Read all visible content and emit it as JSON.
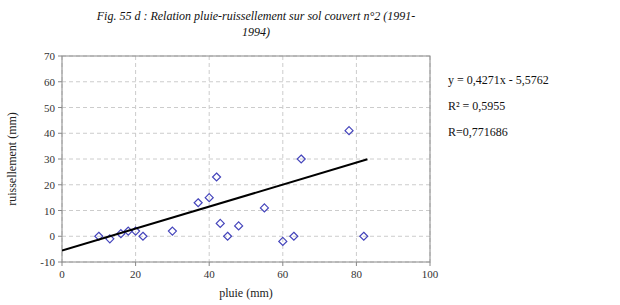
{
  "chart_data": {
    "type": "scatter",
    "title": "Fig. 55 d : Relation pluie-ruissellement sur sol couvert n°2 (1991-",
    "subtitle": "1994)",
    "x_label": "pluie (mm)",
    "y_label": "ruissellement (mm)",
    "xlim": [
      0,
      100
    ],
    "ylim": [
      -10,
      70
    ],
    "xticks": [
      0,
      20,
      40,
      60,
      80,
      100
    ],
    "yticks": [
      -10,
      0,
      10,
      20,
      30,
      40,
      50,
      60,
      70
    ],
    "grid": true,
    "series": [
      {
        "type": "scatter",
        "marker": "diamond",
        "color": "#4444bb",
        "x": [
          10,
          13,
          16,
          18,
          20,
          22,
          30,
          37,
          40,
          42,
          43,
          45,
          48,
          55,
          60,
          63,
          65,
          78,
          82
        ],
        "values": [
          0,
          -1,
          1,
          2,
          2,
          0,
          2,
          13,
          15,
          23,
          5,
          0,
          4,
          11,
          -2,
          0,
          30,
          41,
          0
        ]
      },
      {
        "type": "line",
        "color": "black",
        "x": [
          0,
          83
        ],
        "values": [
          -5.5762,
          29.8731
        ]
      }
    ],
    "annotations": [
      "y = 0,4271x - 5,5762",
      "R² = 0,5955",
      "R=0,771686"
    ]
  }
}
